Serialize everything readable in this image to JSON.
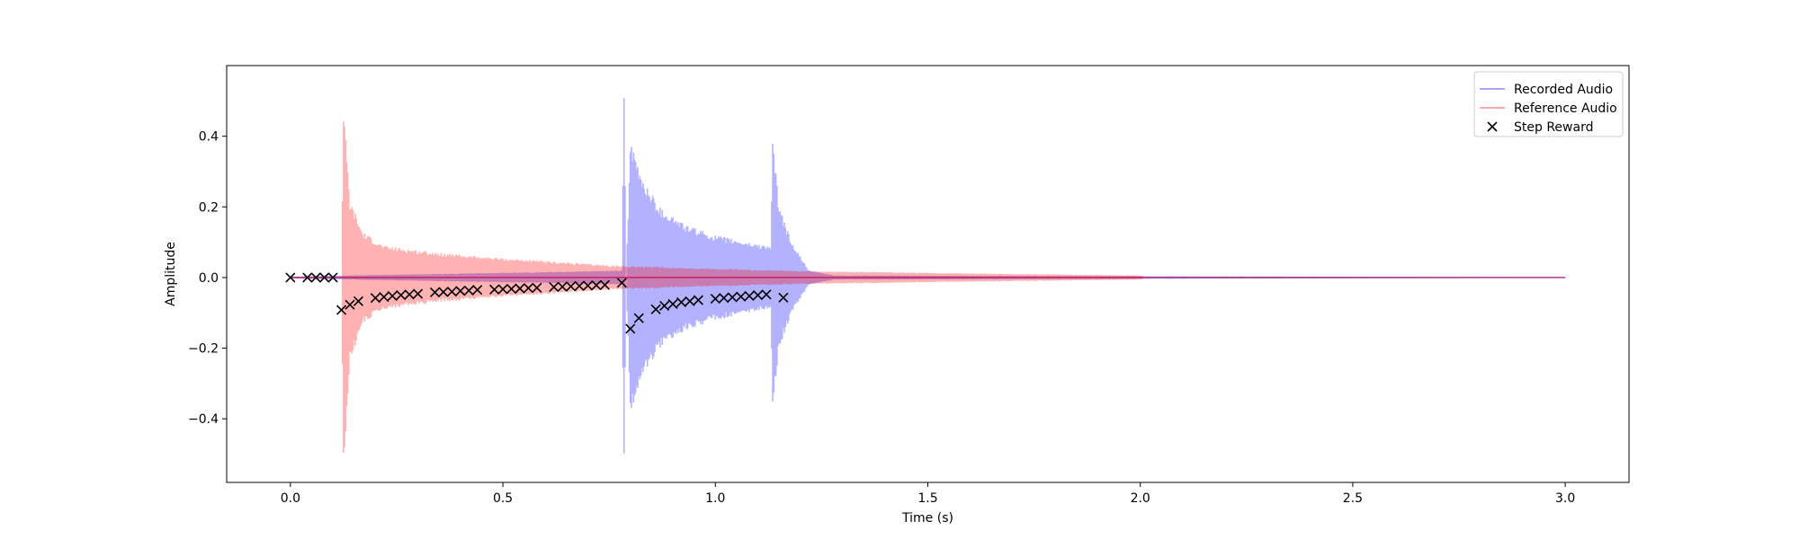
{
  "chart_data": {
    "type": "line",
    "title": "",
    "xlabel": "Time (s)",
    "ylabel": "Amplitude",
    "xlim": [
      -0.15,
      3.15
    ],
    "ylim": [
      -0.58,
      0.6
    ],
    "xticks": [
      0.0,
      0.5,
      1.0,
      1.5,
      2.0,
      2.5,
      3.0
    ],
    "xtick_labels": [
      "0.0",
      "0.5",
      "1.0",
      "1.5",
      "2.0",
      "2.5",
      "3.0"
    ],
    "yticks": [
      -0.4,
      -0.2,
      0.0,
      0.2,
      0.4
    ],
    "ytick_labels": [
      "−0.4",
      "−0.2",
      "0.0",
      "0.2",
      "0.4"
    ],
    "grid": false,
    "legend_position": "top-right",
    "series": [
      {
        "name": "Recorded Audio",
        "kind": "waveform-envelope",
        "color": "#0000ff",
        "alpha": 0.3,
        "points": [
          {
            "t": 0.0,
            "max": 0.003,
            "min": -0.003
          },
          {
            "t": 0.79,
            "max": 0.003,
            "min": -0.003
          },
          {
            "t": 0.78,
            "max": 0.02,
            "min": -0.02
          },
          {
            "t": 0.785,
            "max": 0.55,
            "min": -0.54
          },
          {
            "t": 0.8,
            "max": 0.38,
            "min": -0.38
          },
          {
            "t": 0.83,
            "max": 0.28,
            "min": -0.28
          },
          {
            "t": 0.87,
            "max": 0.2,
            "min": -0.2
          },
          {
            "t": 0.93,
            "max": 0.15,
            "min": -0.15
          },
          {
            "t": 1.0,
            "max": 0.12,
            "min": -0.12
          },
          {
            "t": 1.08,
            "max": 0.1,
            "min": -0.1
          },
          {
            "t": 1.13,
            "max": 0.09,
            "min": -0.09
          },
          {
            "t": 1.135,
            "max": 0.39,
            "min": -0.36
          },
          {
            "t": 1.15,
            "max": 0.2,
            "min": -0.2
          },
          {
            "t": 1.18,
            "max": 0.1,
            "min": -0.1
          },
          {
            "t": 1.22,
            "max": 0.02,
            "min": -0.02
          },
          {
            "t": 1.28,
            "max": 0.006,
            "min": -0.006
          },
          {
            "t": 3.0,
            "max": 0.001,
            "min": -0.001
          }
        ]
      },
      {
        "name": "Reference Audio",
        "kind": "waveform-envelope",
        "color": "#ff0000",
        "alpha": 0.3,
        "points": [
          {
            "t": 0.0,
            "max": 0.002,
            "min": -0.002
          },
          {
            "t": 0.12,
            "max": 0.002,
            "min": -0.002
          },
          {
            "t": 0.125,
            "max": 0.48,
            "min": -0.54
          },
          {
            "t": 0.14,
            "max": 0.22,
            "min": -0.24
          },
          {
            "t": 0.17,
            "max": 0.13,
            "min": -0.13
          },
          {
            "t": 0.22,
            "max": 0.09,
            "min": -0.09
          },
          {
            "t": 0.35,
            "max": 0.07,
            "min": -0.07
          },
          {
            "t": 0.5,
            "max": 0.055,
            "min": -0.055
          },
          {
            "t": 0.75,
            "max": 0.035,
            "min": -0.035
          },
          {
            "t": 1.0,
            "max": 0.025,
            "min": -0.025
          },
          {
            "t": 1.25,
            "max": 0.018,
            "min": -0.018
          },
          {
            "t": 1.6,
            "max": 0.012,
            "min": -0.012
          },
          {
            "t": 2.0,
            "max": 0.006,
            "min": -0.006
          },
          {
            "t": 2.01,
            "max": 0.001,
            "min": -0.001
          },
          {
            "t": 3.0,
            "max": 0.0,
            "min": 0.0
          }
        ]
      },
      {
        "name": "Step Reward",
        "kind": "scatter",
        "marker": "x",
        "color": "#000000",
        "x": [
          0.0,
          0.04,
          0.06,
          0.08,
          0.1,
          0.12,
          0.14,
          0.16,
          0.2,
          0.22,
          0.24,
          0.26,
          0.28,
          0.3,
          0.34,
          0.36,
          0.38,
          0.4,
          0.42,
          0.44,
          0.48,
          0.5,
          0.52,
          0.54,
          0.56,
          0.58,
          0.62,
          0.64,
          0.66,
          0.68,
          0.7,
          0.72,
          0.74,
          0.78,
          0.8,
          0.82,
          0.86,
          0.88,
          0.9,
          0.92,
          0.94,
          0.96,
          1.0,
          1.02,
          1.04,
          1.06,
          1.08,
          1.1,
          1.12,
          1.16
        ],
        "y": [
          0.0,
          0.0,
          0.0,
          0.0,
          0.0,
          -0.092,
          -0.077,
          -0.067,
          -0.058,
          -0.055,
          -0.052,
          -0.05,
          -0.048,
          -0.046,
          -0.042,
          -0.041,
          -0.04,
          -0.038,
          -0.037,
          -0.035,
          -0.034,
          -0.033,
          -0.032,
          -0.031,
          -0.03,
          -0.029,
          -0.027,
          -0.026,
          -0.025,
          -0.024,
          -0.023,
          -0.022,
          -0.021,
          -0.015,
          -0.145,
          -0.115,
          -0.09,
          -0.08,
          -0.075,
          -0.07,
          -0.067,
          -0.064,
          -0.06,
          -0.058,
          -0.056,
          -0.054,
          -0.052,
          -0.05,
          -0.048,
          -0.057
        ]
      }
    ]
  }
}
